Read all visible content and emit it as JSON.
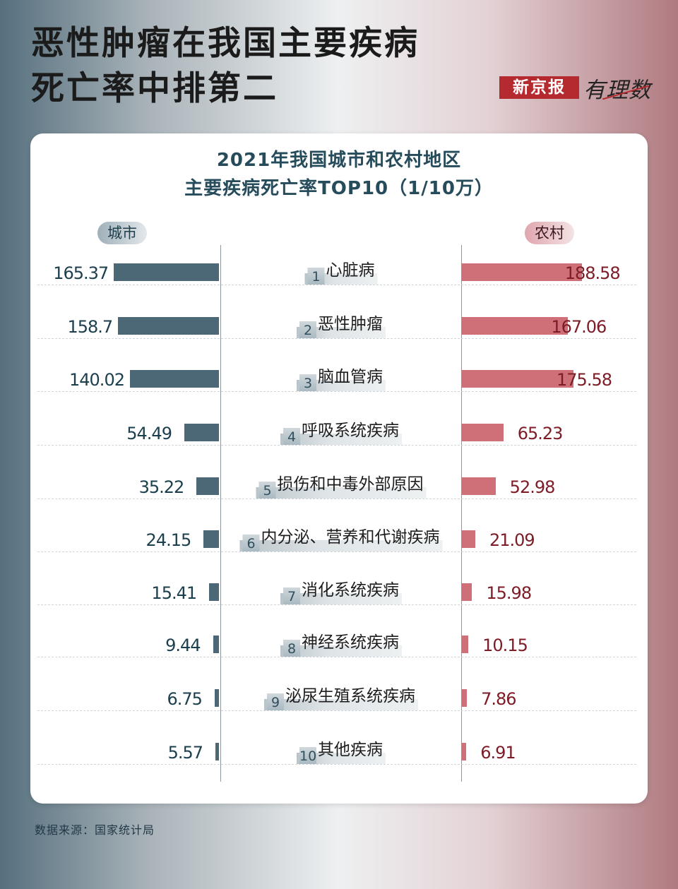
{
  "header": {
    "title_lines": [
      "恶性肿瘤在我国主要疾病",
      "死亡率中排第二"
    ],
    "logo_text": "新京报",
    "logo_mark": "有理数"
  },
  "colors": {
    "city": "#4c6877",
    "rural": "#cf6f77",
    "city_text": "#1c3f4e",
    "rural_text": "#7d1c26",
    "title_text": "#264c5c"
  },
  "chart_data": {
    "type": "bar",
    "title_lines": [
      "2021年我国城市和农村地区",
      "主要疾病死亡率TOP10（1/10万）"
    ],
    "ranks": [
      "1",
      "2",
      "3",
      "4",
      "5",
      "6",
      "7",
      "8",
      "9",
      "10"
    ],
    "categories": [
      "心脏病",
      "恶性肿瘤",
      "脑血管病",
      "呼吸系统疾病",
      "损伤和中毒外部原因",
      "内分泌、营养和代谢疾病",
      "消化系统疾病",
      "神经系统疾病",
      "泌尿生殖系统疾病",
      "其他疾病"
    ],
    "series": [
      {
        "name": "城市",
        "values": [
          165.37,
          158.7,
          140.02,
          54.49,
          35.22,
          24.15,
          15.41,
          9.44,
          6.75,
          5.57
        ],
        "labels": [
          "165.37",
          "158.7",
          "140.02",
          "54.49",
          "35.22",
          "24.15",
          "15.41",
          "9.44",
          "6.75",
          "5.57"
        ]
      },
      {
        "name": "农村",
        "values": [
          188.58,
          167.06,
          175.58,
          65.23,
          52.98,
          21.09,
          15.98,
          10.15,
          7.86,
          6.91
        ],
        "labels": [
          "188.58",
          "167.06",
          "175.58",
          "65.23",
          "52.98",
          "21.09",
          "15.98",
          "10.15",
          "7.86",
          "6.91"
        ]
      }
    ],
    "layout": "back-to-back horizontal bars",
    "grid": false
  },
  "footer": {
    "source": "数据来源：国家统计局"
  }
}
